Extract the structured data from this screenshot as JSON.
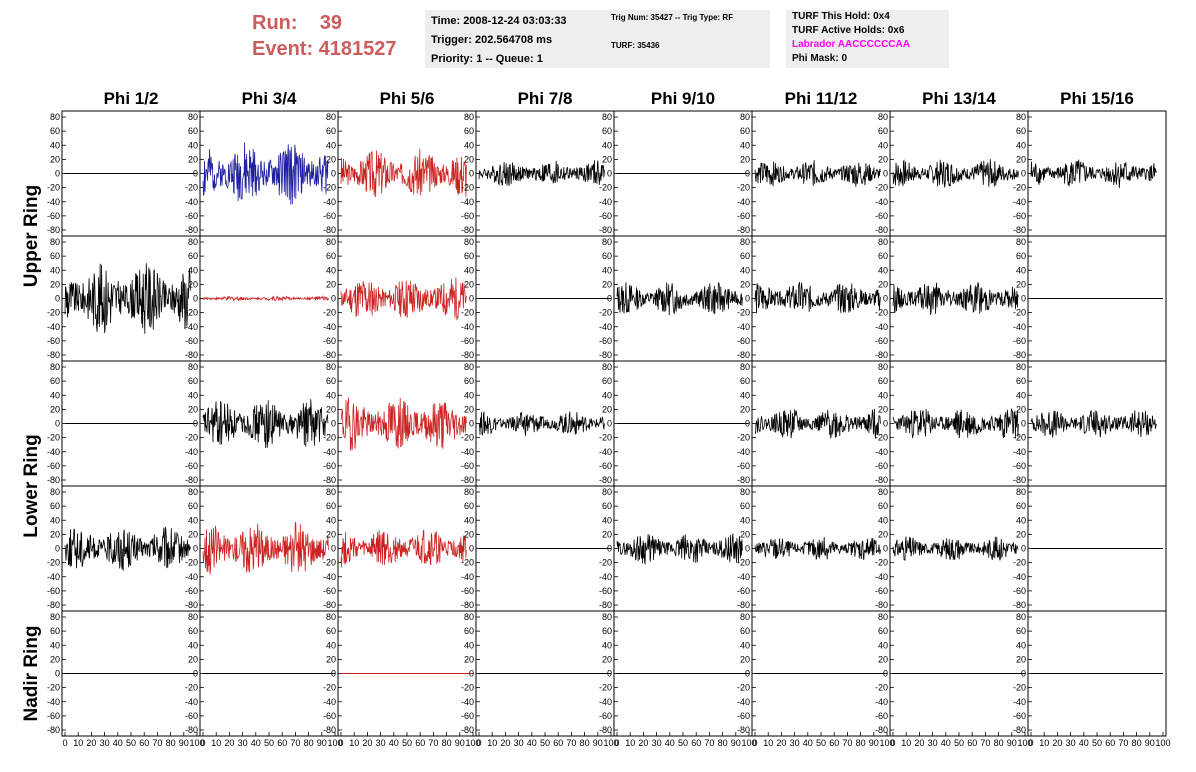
{
  "header": {
    "run_label": "Run:",
    "run_value": "39",
    "event_label": "Event:",
    "event_value": "4181527",
    "time": "Time: 2008-12-24 03:03:33",
    "trigger": "Trigger: 202.564708 ms",
    "priority": "Priority: 1 -- Queue: 1",
    "trig_num": "Trig Num: 35427 -- Trig Type: RF",
    "turf": "TURF: 35436",
    "turf_this_hold": "TURF This Hold: 0x4",
    "turf_active_holds": "TURF Active Holds: 0x6",
    "labrador": "Labrador AACCCCCCAA",
    "phi_mask": "Phi Mask: 0",
    "colors": {
      "run": "#cd5c5c",
      "labrador": "#ff00ff",
      "panel_bg": "#eeeeee"
    }
  },
  "chart_data": {
    "type": "line",
    "columns": [
      "Phi 1/2",
      "Phi 3/4",
      "Phi 5/6",
      "Phi 7/8",
      "Phi 9/10",
      "Phi 11/12",
      "Phi 13/14",
      "Phi 15/16"
    ],
    "rows": [
      "Upper Ring",
      "Lower Ring",
      "Nadir Ring"
    ],
    "xlim": [
      0,
      100
    ],
    "ylim": [
      -80,
      80
    ],
    "x_ticks": [
      "0",
      "10",
      "20",
      "30",
      "40",
      "50",
      "60",
      "70",
      "80",
      "90",
      "100"
    ],
    "y_ticks": [
      "80",
      "60",
      "40",
      "20",
      "0",
      "-20",
      "-40",
      "-60",
      "-80"
    ],
    "colors": {
      "blue": "#1f1fa0",
      "red": "#cc2222",
      "black": "#000000"
    },
    "panels": [
      [
        {
          "color": "black",
          "amp": 0,
          "seed": 1
        },
        {
          "color": "blue",
          "amp": 28,
          "seed": 2
        },
        {
          "color": "red",
          "amp": 22,
          "seed": 3
        },
        {
          "color": "black",
          "amp": 12,
          "seed": 4
        },
        {
          "color": "black",
          "amp": 0,
          "seed": 5
        },
        {
          "color": "black",
          "amp": 12,
          "seed": 6
        },
        {
          "color": "black",
          "amp": 13,
          "seed": 7
        },
        {
          "color": "black",
          "amp": 13,
          "seed": 8
        }
      ],
      [
        {
          "color": "black",
          "amp": 32,
          "seed": 9
        },
        {
          "color": "red",
          "amp": 2,
          "seed": 10
        },
        {
          "color": "red",
          "amp": 20,
          "seed": 11
        },
        {
          "color": "black",
          "amp": 0,
          "seed": 12
        },
        {
          "color": "black",
          "amp": 15,
          "seed": 13
        },
        {
          "color": "black",
          "amp": 15,
          "seed": 14
        },
        {
          "color": "black",
          "amp": 15,
          "seed": 15
        },
        {
          "color": "black",
          "amp": 0,
          "seed": 16
        }
      ],
      [
        {
          "color": "black",
          "amp": 0,
          "seed": 17
        },
        {
          "color": "black",
          "amp": 22,
          "seed": 18
        },
        {
          "color": "red",
          "amp": 24,
          "seed": 19
        },
        {
          "color": "black",
          "amp": 11,
          "seed": 20
        },
        {
          "color": "black",
          "amp": 0,
          "seed": 21
        },
        {
          "color": "black",
          "amp": 14,
          "seed": 22
        },
        {
          "color": "black",
          "amp": 15,
          "seed": 23
        },
        {
          "color": "black",
          "amp": 13,
          "seed": 24
        }
      ],
      [
        {
          "color": "black",
          "amp": 20,
          "seed": 25
        },
        {
          "color": "red",
          "amp": 24,
          "seed": 26
        },
        {
          "color": "red",
          "amp": 18,
          "seed": 27
        },
        {
          "color": "black",
          "amp": 0,
          "seed": 28
        },
        {
          "color": "black",
          "amp": 14,
          "seed": 29
        },
        {
          "color": "black",
          "amp": 11,
          "seed": 30
        },
        {
          "color": "black",
          "amp": 11,
          "seed": 31
        },
        {
          "color": "black",
          "amp": 0,
          "seed": 32
        }
      ],
      [
        {
          "color": "black",
          "amp": 0,
          "seed": 33
        },
        {
          "color": "black",
          "amp": 0,
          "seed": 34
        },
        {
          "color": "red",
          "amp": 0,
          "seed": 35
        },
        {
          "color": "black",
          "amp": 0,
          "seed": 36
        },
        {
          "color": "black",
          "amp": 0,
          "seed": 37
        },
        {
          "color": "black",
          "amp": 0,
          "seed": 38
        },
        {
          "color": "black",
          "amp": 0,
          "seed": 39
        },
        {
          "color": "black",
          "amp": 0,
          "seed": 40
        }
      ]
    ]
  }
}
